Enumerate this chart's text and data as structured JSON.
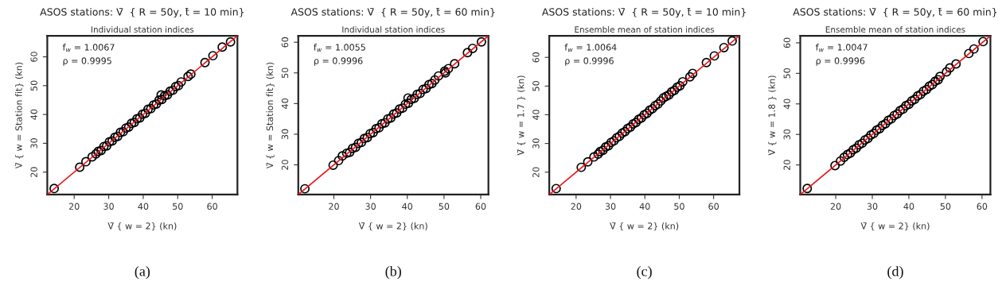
{
  "chart_data": [
    {
      "type": "scatter",
      "title": "ASOS stations: V̄  { R = 50y, t̄ = 10 min}",
      "subtitle": "Individual station indices",
      "xlabel": "V̄ { w = 2} (kn)",
      "ylabel": "V̄ { w = Station fit} (kn)",
      "xlim": [
        12.2,
        67.3
      ],
      "ylim": [
        12.2,
        67.3
      ],
      "xticks": [
        20,
        30,
        40,
        50,
        60
      ],
      "yticks": [
        20,
        30,
        40,
        50,
        60
      ],
      "grid": false,
      "annotations": [
        "f$_{w}$ = 1.0067",
        "ρ = 0.9995",
        "(a)"
      ],
      "series": [
        {
          "marker": "circle",
          "color": "#000000",
          "x": [
            14.2,
            21.6,
            23.4,
            25.2,
            26.3,
            27,
            27.8,
            28.6,
            29.4,
            30.2,
            31,
            31.8,
            32.6,
            33.4,
            34.2,
            35,
            35.8,
            36.6,
            37.4,
            38.2,
            39,
            39.8,
            40.6,
            41.4,
            42.2,
            43,
            43.8,
            44.6,
            45.2,
            45.4,
            46.2,
            47,
            47.8,
            48.6,
            49.4,
            50.2,
            51,
            53,
            53.8,
            57.9,
            60.2,
            62.9,
            65.3
          ],
          "values": [
            14.3,
            21.7,
            23.6,
            25.3,
            26.3,
            27.2,
            27.5,
            28.9,
            29.1,
            30.5,
            30.8,
            32.1,
            32.4,
            33.8,
            34.0,
            35.3,
            35.6,
            36.9,
            37.2,
            38.5,
            38.8,
            40.1,
            40.4,
            41.8,
            42.0,
            43.3,
            43.6,
            45.0,
            46.8,
            45.2,
            46.5,
            46.8,
            48.1,
            48.4,
            49.7,
            50.0,
            51.3,
            53.2,
            54.0,
            58.0,
            60.4,
            63.4,
            65.2
          ]
        },
        {
          "type": "line",
          "marker": "none",
          "color": "#e8191f",
          "line_style": "solid",
          "x": [
            12.2,
            67.3
          ],
          "values": [
            12.2,
            67.3
          ]
        }
      ]
    },
    {
      "type": "scatter",
      "title": "ASOS stations: V̄  { R = 50y, t̄ = 60 min}",
      "subtitle": "Individual station indices",
      "xlabel": "V̄ { w = 2} (kn)",
      "ylabel": "V̄ { w = Station fit} (kn)",
      "xlim": [
        10.3,
        62.1
      ],
      "ylim": [
        10.3,
        62.1
      ],
      "xticks": [
        20,
        30,
        40,
        50,
        60
      ],
      "yticks": [
        20,
        30,
        40,
        50,
        60
      ],
      "grid": false,
      "annotations": [
        "f$_{w}$ = 1.0055",
        "ρ = 0.9996",
        "(b)"
      ],
      "series": [
        {
          "marker": "circle",
          "color": "#000000",
          "x": [
            12.1,
            19.8,
            21.3,
            22.3,
            23.5,
            24.3,
            25.1,
            25.9,
            26.7,
            27.5,
            28.3,
            29.1,
            29.9,
            30.7,
            31.5,
            32.3,
            33.1,
            33.9,
            34.7,
            35.5,
            36.3,
            37.1,
            37.9,
            38.7,
            39.5,
            40.2,
            40.3,
            41.1,
            41.9,
            42.7,
            43.5,
            44.3,
            45.1,
            45.9,
            46.7,
            47.5,
            48.5,
            50.2,
            50.4,
            51.2,
            52.9,
            56.4,
            57.8,
            60.2
          ],
          "values": [
            12.2,
            19.9,
            21.4,
            22.9,
            23.8,
            24.1,
            25.4,
            25.7,
            27.0,
            27.3,
            28.6,
            28.9,
            30.2,
            30.5,
            31.8,
            32.1,
            33.4,
            33.7,
            35.0,
            35.3,
            36.6,
            36.9,
            38.2,
            38.5,
            39.8,
            41.8,
            40.1,
            41.4,
            41.7,
            43.0,
            43.3,
            44.6,
            44.9,
            46.2,
            46.5,
            47.7,
            49.0,
            50.6,
            50.0,
            51.4,
            53.0,
            56.6,
            58.0,
            60.1
          ]
        },
        {
          "type": "line",
          "marker": "none",
          "color": "#e8191f",
          "line_style": "solid",
          "x": [
            10.3,
            62.1
          ],
          "values": [
            10.3,
            62.1
          ]
        }
      ]
    },
    {
      "type": "scatter",
      "title": "ASOS stations: V̄  { R = 50y, t̄ = 10 min}",
      "subtitle": "Ensemble mean of station indices",
      "xlabel": "V̄ { w = 2} (kn)",
      "ylabel": "V̄ { w = 1.7 } (kn)",
      "xlim": [
        12.2,
        67.5
      ],
      "ylim": [
        12.2,
        67.5
      ],
      "xticks": [
        20,
        30,
        40,
        50,
        60
      ],
      "yticks": [
        20,
        30,
        40,
        50,
        60
      ],
      "grid": false,
      "annotations": [
        "f$_{w}$ = 1.0064",
        "ρ = 0.9996",
        "(c)"
      ],
      "series": [
        {
          "marker": "circle",
          "color": "#000000",
          "x": [
            14.2,
            21.5,
            23.4,
            25.2,
            26.4,
            27,
            27.8,
            28.6,
            29.4,
            30.2,
            31,
            31.8,
            32.6,
            33.4,
            34.2,
            35,
            35.8,
            36.6,
            37.4,
            38.2,
            39,
            39.8,
            40.6,
            41.4,
            42.2,
            43,
            43.8,
            44.6,
            45.4,
            46.2,
            47,
            47.8,
            48.6,
            49.4,
            50.2,
            51,
            53.1,
            53.9,
            57.9,
            60.2,
            63,
            65.4
          ],
          "values": [
            14.3,
            21.7,
            23.6,
            25.3,
            26.3,
            27.2,
            27.6,
            28.8,
            29.2,
            30.4,
            30.9,
            32.0,
            32.5,
            33.6,
            34.1,
            35.2,
            35.7,
            36.8,
            37.3,
            38.4,
            38.9,
            40.0,
            40.5,
            41.6,
            42.1,
            43.2,
            43.7,
            44.8,
            45.9,
            46.4,
            46.9,
            48.0,
            48.5,
            49.6,
            50.1,
            51.5,
            53.2,
            54.4,
            58.2,
            60.5,
            63.4,
            65.7
          ]
        },
        {
          "type": "line",
          "marker": "none",
          "color": "#e8191f",
          "line_style": "solid",
          "x": [
            12.2,
            67.5
          ],
          "values": [
            12.2,
            67.5
          ]
        }
      ]
    },
    {
      "type": "scatter",
      "title": "ASOS stations: V̄  { R = 50y, t̄ = 60 min}",
      "subtitle": "Ensemble mean of station indices",
      "xlabel": "V̄ { w = 2} (kn)",
      "ylabel": "V̄ { w = 1.8 } (kn)",
      "xlim": [
        10.3,
        62.3
      ],
      "ylim": [
        10.3,
        62.3
      ],
      "xticks": [
        20,
        30,
        40,
        50,
        60
      ],
      "yticks": [
        20,
        30,
        40,
        50,
        60
      ],
      "grid": false,
      "annotations": [
        "f$_{w}$ = 1.0047",
        "ρ = 0.9996",
        "(d)"
      ],
      "series": [
        {
          "marker": "circle",
          "color": "#000000",
          "x": [
            12.2,
            19.8,
            21.3,
            22.3,
            23.2,
            24.0,
            24.8,
            25.6,
            26.4,
            27.2,
            28.0,
            28.8,
            29.6,
            30.4,
            31.2,
            32.0,
            32.8,
            33.6,
            34.4,
            35.2,
            36.0,
            36.8,
            37.6,
            38.4,
            39.2,
            40.0,
            40.8,
            41.6,
            42.4,
            43.2,
            44.0,
            44.8,
            45.6,
            46.4,
            47.2,
            48.0,
            48.5,
            50.3,
            51.2,
            52.9,
            56.4,
            57.8,
            60.3
          ],
          "values": [
            12.3,
            19.8,
            21.3,
            22.5,
            23.4,
            23.9,
            25.0,
            25.5,
            26.6,
            27.1,
            28.2,
            28.7,
            29.8,
            30.3,
            31.4,
            31.9,
            33.0,
            33.5,
            34.6,
            35.1,
            36.2,
            36.7,
            37.8,
            38.3,
            39.4,
            39.9,
            41.0,
            41.5,
            42.6,
            43.1,
            44.2,
            44.7,
            45.8,
            46.3,
            47.4,
            47.9,
            49.0,
            50.5,
            51.8,
            53.1,
            56.5,
            58.0,
            60.4
          ]
        },
        {
          "type": "line",
          "marker": "none",
          "color": "#e8191f",
          "line_style": "solid",
          "x": [
            10.3,
            62.3
          ],
          "values": [
            10.3,
            62.3
          ]
        }
      ]
    }
  ]
}
